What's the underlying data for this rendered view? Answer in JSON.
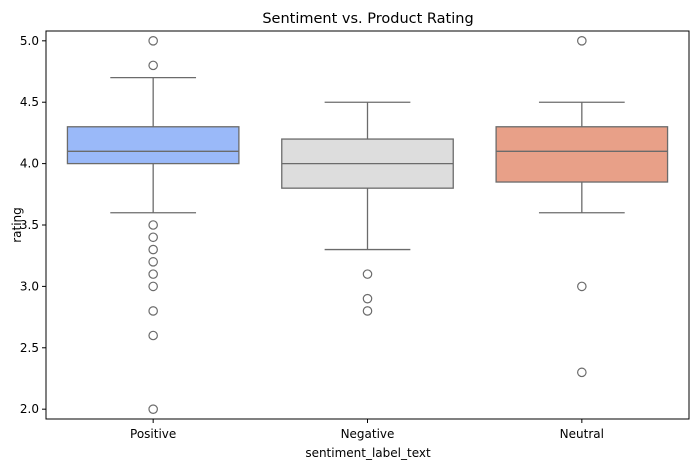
{
  "chart_data": {
    "type": "box",
    "title": "Sentiment vs. Product Rating",
    "xlabel": "sentiment_label_text",
    "ylabel": "rating",
    "ylim": [
      1.92,
      5.08
    ],
    "yticks": [
      2.0,
      2.5,
      3.0,
      3.5,
      4.0,
      4.5,
      5.0
    ],
    "ytick_labels": [
      "2.0",
      "2.5",
      "3.0",
      "3.5",
      "4.0",
      "4.5",
      "5.0"
    ],
    "categories": [
      "Positive",
      "Negative",
      "Neutral"
    ],
    "grid": false,
    "boxes": [
      {
        "category": "Positive",
        "color": "#9ab9f9",
        "whisker_low": 3.6,
        "q1": 4.0,
        "median": 4.1,
        "q3": 4.3,
        "whisker_high": 4.7,
        "outliers": [
          5.0,
          4.8,
          3.5,
          3.4,
          3.3,
          3.2,
          3.1,
          3.0,
          2.8,
          2.6,
          2.0
        ]
      },
      {
        "category": "Negative",
        "color": "#dddddd",
        "whisker_low": 3.3,
        "q1": 3.8,
        "median": 4.0,
        "q3": 4.2,
        "whisker_high": 4.5,
        "outliers": [
          3.1,
          2.9,
          2.8
        ]
      },
      {
        "category": "Neutral",
        "color": "#e8a088",
        "whisker_low": 3.6,
        "q1": 3.85,
        "median": 4.1,
        "q3": 4.3,
        "whisker_high": 4.5,
        "outliers": [
          5.0,
          3.0,
          2.3
        ]
      }
    ]
  }
}
